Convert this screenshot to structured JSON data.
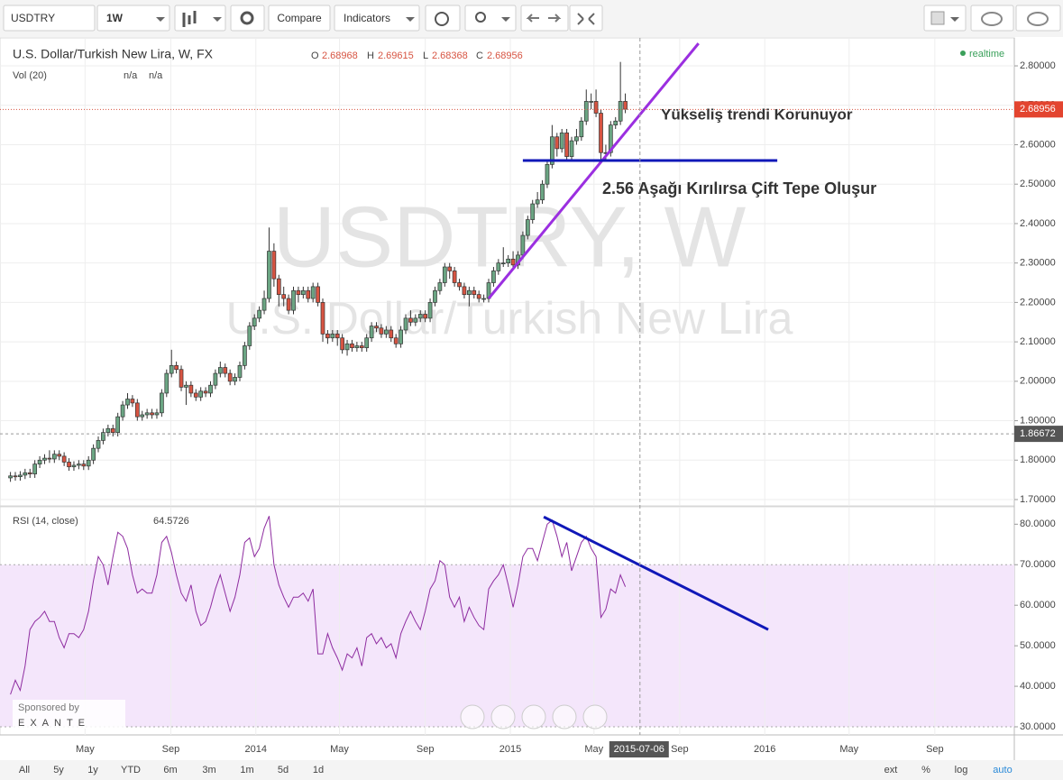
{
  "toolbar": {
    "symbol": "USDTRY",
    "interval": "1W",
    "compare": "Compare",
    "indicators": "Indicators"
  },
  "bottom_bar": {
    "ranges": [
      "All",
      "5y",
      "1y",
      "YTD",
      "6m",
      "3m",
      "1m",
      "5d",
      "1d"
    ],
    "toggles": [
      "ext",
      "%",
      "log",
      "auto"
    ]
  },
  "chart_data": [
    {
      "type": "candlestick",
      "title": "U.S. Dollar/Turkish New Lira, W, FX",
      "ohlc_labels": [
        "O",
        "H",
        "L",
        "C"
      ],
      "ohlc_values": [
        2.68968,
        2.69615,
        2.68368,
        2.68956
      ],
      "volume_title": "Vol (20)",
      "volume_values": [
        "n/a",
        "n/a"
      ],
      "status": "realtime",
      "watermark": [
        "USDTRY, W",
        "U.S. Dollar/Turkish New Lira"
      ],
      "up_color": "#6ba583",
      "down_color": "#d75442",
      "x": [
        "2013-01-14",
        "2013-01-21",
        "2013-01-28",
        "2013-02-04",
        "2013-02-11",
        "2013-02-18",
        "2013-02-25",
        "2013-03-04",
        "2013-03-11",
        "2013-03-18",
        "2013-03-25",
        "2013-04-01",
        "2013-04-08",
        "2013-04-15",
        "2013-04-22",
        "2013-04-29",
        "2013-05-06",
        "2013-05-13",
        "2013-05-20",
        "2013-05-27",
        "2013-06-03",
        "2013-06-10",
        "2013-06-17",
        "2013-06-24",
        "2013-07-01",
        "2013-07-08",
        "2013-07-15",
        "2013-07-22",
        "2013-07-29",
        "2013-08-05",
        "2013-08-12",
        "2013-08-19",
        "2013-08-26",
        "2013-09-02",
        "2013-09-09",
        "2013-09-16",
        "2013-09-23",
        "2013-09-30",
        "2013-10-07",
        "2013-10-14",
        "2013-10-21",
        "2013-10-28",
        "2013-11-04",
        "2013-11-11",
        "2013-11-18",
        "2013-11-25",
        "2013-12-02",
        "2013-12-09",
        "2013-12-16",
        "2013-12-23",
        "2013-12-30",
        "2014-01-06",
        "2014-01-13",
        "2014-01-20",
        "2014-01-27",
        "2014-02-03",
        "2014-02-10",
        "2014-02-17",
        "2014-02-24",
        "2014-03-03",
        "2014-03-10",
        "2014-03-17",
        "2014-03-24",
        "2014-03-31",
        "2014-04-07",
        "2014-04-14",
        "2014-04-21",
        "2014-04-28",
        "2014-05-05",
        "2014-05-12",
        "2014-05-19",
        "2014-05-26",
        "2014-06-02",
        "2014-06-09",
        "2014-06-16",
        "2014-06-23",
        "2014-06-30",
        "2014-07-07",
        "2014-07-14",
        "2014-07-21",
        "2014-07-28",
        "2014-08-04",
        "2014-08-11",
        "2014-08-18",
        "2014-08-25",
        "2014-09-01",
        "2014-09-08",
        "2014-09-15",
        "2014-09-22",
        "2014-09-29",
        "2014-10-06",
        "2014-10-13",
        "2014-10-20",
        "2014-10-27",
        "2014-11-03",
        "2014-11-10",
        "2014-11-17",
        "2014-11-24",
        "2014-12-01",
        "2014-12-08",
        "2014-12-15",
        "2014-12-22",
        "2014-12-29",
        "2015-01-05",
        "2015-01-12",
        "2015-01-19",
        "2015-01-26",
        "2015-02-02",
        "2015-02-09",
        "2015-02-16",
        "2015-02-23",
        "2015-03-02",
        "2015-03-09",
        "2015-03-16",
        "2015-03-23",
        "2015-03-30",
        "2015-04-06",
        "2015-04-13",
        "2015-04-20",
        "2015-04-27",
        "2015-05-04",
        "2015-05-11",
        "2015-05-18",
        "2015-05-25",
        "2015-06-01",
        "2015-06-08",
        "2015-06-15"
      ],
      "open": [
        1.755,
        1.76,
        1.758,
        1.762,
        1.768,
        1.765,
        1.79,
        1.8,
        1.805,
        1.803,
        1.815,
        1.81,
        1.795,
        1.783,
        1.787,
        1.79,
        1.785,
        1.8,
        1.83,
        1.85,
        1.87,
        1.88,
        1.87,
        1.91,
        1.94,
        1.955,
        1.945,
        1.91,
        1.915,
        1.92,
        1.915,
        1.92,
        1.97,
        2.02,
        2.04,
        2.03,
        1.985,
        1.99,
        1.97,
        1.96,
        1.975,
        1.97,
        1.99,
        2.02,
        2.035,
        2.02,
        2.0,
        2.01,
        2.04,
        2.09,
        2.14,
        2.16,
        2.18,
        2.21,
        2.33,
        2.26,
        2.22,
        2.21,
        2.18,
        2.23,
        2.22,
        2.23,
        2.21,
        2.24,
        2.2,
        2.12,
        2.11,
        2.12,
        2.11,
        2.08,
        2.095,
        2.085,
        2.09,
        2.085,
        2.11,
        2.14,
        2.135,
        2.12,
        2.13,
        2.11,
        2.095,
        2.13,
        2.16,
        2.15,
        2.16,
        2.17,
        2.16,
        2.2,
        2.23,
        2.25,
        2.29,
        2.28,
        2.25,
        2.24,
        2.22,
        2.23,
        2.22,
        2.21,
        2.21,
        2.25,
        2.28,
        2.3,
        2.3,
        2.31,
        2.295,
        2.32,
        2.37,
        2.41,
        2.45,
        2.46,
        2.5,
        2.55,
        2.62,
        2.59,
        2.63,
        2.57,
        2.61,
        2.62,
        2.66,
        2.71,
        2.71,
        2.68,
        2.58,
        2.58,
        2.65,
        2.66,
        2.71
      ],
      "high": [
        1.77,
        1.77,
        1.772,
        1.778,
        1.778,
        1.8,
        1.81,
        1.815,
        1.825,
        1.825,
        1.825,
        1.82,
        1.805,
        1.797,
        1.8,
        1.8,
        1.81,
        1.84,
        1.86,
        1.88,
        1.89,
        1.89,
        1.92,
        1.95,
        1.97,
        1.965,
        1.955,
        1.925,
        1.93,
        1.93,
        1.93,
        1.98,
        2.03,
        2.08,
        2.05,
        2.04,
        2.0,
        2.0,
        1.98,
        1.985,
        1.985,
        2.0,
        2.03,
        2.05,
        2.045,
        2.03,
        2.02,
        2.05,
        2.1,
        2.15,
        2.17,
        2.19,
        2.23,
        2.39,
        2.35,
        2.27,
        2.24,
        2.22,
        2.24,
        2.24,
        2.24,
        2.24,
        2.25,
        2.25,
        2.21,
        2.13,
        2.13,
        2.13,
        2.12,
        2.105,
        2.105,
        2.1,
        2.1,
        2.12,
        2.15,
        2.15,
        2.145,
        2.14,
        2.14,
        2.12,
        2.14,
        2.17,
        2.18,
        2.17,
        2.18,
        2.18,
        2.21,
        2.24,
        2.26,
        2.3,
        2.3,
        2.29,
        2.26,
        2.25,
        2.24,
        2.24,
        2.23,
        2.22,
        2.26,
        2.29,
        2.31,
        2.34,
        2.32,
        2.33,
        2.33,
        2.38,
        2.42,
        2.46,
        2.48,
        2.51,
        2.56,
        2.65,
        2.63,
        2.64,
        2.64,
        2.62,
        2.64,
        2.67,
        2.74,
        2.73,
        2.74,
        2.69,
        2.6,
        2.66,
        2.67,
        2.81,
        2.73
      ],
      "low": [
        1.745,
        1.748,
        1.748,
        1.752,
        1.755,
        1.755,
        1.78,
        1.79,
        1.793,
        1.793,
        1.8,
        1.785,
        1.773,
        1.773,
        1.777,
        1.775,
        1.775,
        1.79,
        1.82,
        1.84,
        1.86,
        1.86,
        1.86,
        1.9,
        1.93,
        1.935,
        1.9,
        1.9,
        1.905,
        1.905,
        1.905,
        1.91,
        1.96,
        2.01,
        2.02,
        1.975,
        1.94,
        1.96,
        1.95,
        1.95,
        1.96,
        1.96,
        1.98,
        2.01,
        2.01,
        1.99,
        1.99,
        2.0,
        2.03,
        2.08,
        2.13,
        2.15,
        2.17,
        2.2,
        2.24,
        2.19,
        2.19,
        2.17,
        2.17,
        2.2,
        2.21,
        2.2,
        2.2,
        2.19,
        2.1,
        2.095,
        2.1,
        2.09,
        2.07,
        2.065,
        2.075,
        2.075,
        2.075,
        2.075,
        2.1,
        2.125,
        2.11,
        2.11,
        2.1,
        2.085,
        2.085,
        2.12,
        2.14,
        2.14,
        2.15,
        2.15,
        2.15,
        2.19,
        2.22,
        2.24,
        2.26,
        2.24,
        2.23,
        2.21,
        2.19,
        2.21,
        2.2,
        2.2,
        2.2,
        2.24,
        2.27,
        2.29,
        2.29,
        2.285,
        2.285,
        2.31,
        2.36,
        2.4,
        2.44,
        2.45,
        2.49,
        2.54,
        2.57,
        2.58,
        2.56,
        2.56,
        2.6,
        2.61,
        2.65,
        2.69,
        2.67,
        2.56,
        2.56,
        2.57,
        2.64,
        2.65,
        2.68
      ],
      "close": [
        1.76,
        1.758,
        1.762,
        1.768,
        1.765,
        1.79,
        1.8,
        1.805,
        1.803,
        1.815,
        1.81,
        1.795,
        1.783,
        1.787,
        1.79,
        1.785,
        1.8,
        1.83,
        1.85,
        1.87,
        1.88,
        1.87,
        1.91,
        1.94,
        1.955,
        1.945,
        1.91,
        1.915,
        1.92,
        1.915,
        1.92,
        1.97,
        2.02,
        2.04,
        2.03,
        1.985,
        1.99,
        1.97,
        1.96,
        1.975,
        1.97,
        1.99,
        2.02,
        2.035,
        2.02,
        2.0,
        2.01,
        2.04,
        2.09,
        2.14,
        2.16,
        2.18,
        2.21,
        2.33,
        2.26,
        2.22,
        2.21,
        2.18,
        2.23,
        2.22,
        2.23,
        2.21,
        2.24,
        2.2,
        2.12,
        2.11,
        2.12,
        2.11,
        2.08,
        2.095,
        2.085,
        2.09,
        2.085,
        2.11,
        2.14,
        2.135,
        2.12,
        2.13,
        2.11,
        2.095,
        2.13,
        2.16,
        2.15,
        2.16,
        2.17,
        2.16,
        2.2,
        2.23,
        2.25,
        2.29,
        2.28,
        2.25,
        2.24,
        2.22,
        2.23,
        2.22,
        2.21,
        2.21,
        2.25,
        2.28,
        2.3,
        2.3,
        2.31,
        2.295,
        2.32,
        2.37,
        2.41,
        2.45,
        2.46,
        2.5,
        2.55,
        2.62,
        2.59,
        2.63,
        2.57,
        2.61,
        2.62,
        2.66,
        2.71,
        2.71,
        2.68,
        2.58,
        2.58,
        2.65,
        2.66,
        2.71,
        2.69
      ],
      "xlim": [
        "2012-12-30",
        "2016-12-24"
      ],
      "xticks": [
        {
          "value": "2013-05-01",
          "label": "May"
        },
        {
          "value": "2013-09-01",
          "label": "Sep"
        },
        {
          "value": "2014-01-01",
          "label": "2014"
        },
        {
          "value": "2014-05-01",
          "label": "May"
        },
        {
          "value": "2014-09-01",
          "label": "Sep"
        },
        {
          "value": "2015-01-01",
          "label": "2015"
        },
        {
          "value": "2015-05-01",
          "label": "May"
        },
        {
          "value": "2015-09-01",
          "label": "Sep"
        },
        {
          "value": "2016-01-01",
          "label": "2016"
        },
        {
          "value": "2016-05-01",
          "label": "May"
        },
        {
          "value": "2016-09-01",
          "label": "Sep"
        }
      ],
      "cursor_x": "2015-07-06",
      "ylim": [
        1.684,
        2.871
      ],
      "yticks": [
        {
          "value": 1.7,
          "label": "1.70000"
        },
        {
          "value": 1.8,
          "label": "1.80000"
        },
        {
          "value": 1.9,
          "label": "1.90000"
        },
        {
          "value": 2.0,
          "label": "2.00000"
        },
        {
          "value": 2.1,
          "label": "2.10000"
        },
        {
          "value": 2.2,
          "label": "2.20000"
        },
        {
          "value": 2.3,
          "label": "2.30000"
        },
        {
          "value": 2.4,
          "label": "2.40000"
        },
        {
          "value": 2.5,
          "label": "2.50000"
        },
        {
          "value": 2.6,
          "label": "2.60000"
        },
        {
          "value": 2.7,
          "label": "2.70000"
        },
        {
          "value": 2.8,
          "label": "2.80000"
        }
      ],
      "grid": true,
      "price_marker": 1.86672,
      "trend_lines": [
        {
          "color": "#9b2fe0",
          "x": [
            "2014-12-01",
            "2015-09-28"
          ],
          "y": [
            2.21,
            2.857
          ]
        },
        {
          "color": "#1018b8",
          "x": [
            "2015-01-19",
            "2016-01-19"
          ],
          "y": [
            2.56,
            2.56
          ]
        }
      ],
      "annotations": [
        {
          "text": "Yükseliş trendi Korunuyor",
          "color": "#9b2fe0"
        },
        {
          "text": "2.56 Aşağı Kırılırsa Çift Tepe Oluşur",
          "color": "#1018b8"
        }
      ]
    },
    {
      "type": "line",
      "title": "RSI (14, close)",
      "color": "#8e2ca0",
      "values": [
        38,
        41.5,
        39,
        45,
        54,
        56,
        57,
        58.5,
        56,
        56,
        52,
        49.5,
        53,
        53,
        52,
        54,
        58.5,
        66,
        72,
        70,
        65,
        72,
        78,
        77,
        74,
        67.5,
        63,
        64,
        63,
        63,
        67.5,
        75.5,
        77,
        73,
        67.5,
        63,
        61,
        65,
        58.5,
        55,
        56,
        59.5,
        64,
        67.5,
        63,
        58.5,
        62,
        67.5,
        75.5,
        76.6,
        72,
        74,
        79,
        82,
        70,
        65,
        62,
        59.5,
        62,
        62,
        63,
        61,
        64,
        48,
        48,
        53,
        49.5,
        47,
        44,
        48,
        47,
        49.5,
        45,
        52,
        53,
        50.5,
        52,
        49.5,
        50.5,
        47,
        53,
        56,
        58.5,
        56,
        54,
        58.5,
        64,
        66,
        71,
        70,
        62,
        59.5,
        62,
        56,
        59.5,
        57,
        55,
        54,
        64,
        66,
        67.5,
        70,
        65,
        59.5,
        65,
        72,
        74,
        74,
        71,
        75.5,
        80,
        81,
        77,
        72,
        75.5,
        68.5,
        72,
        75.5,
        77,
        74,
        72,
        57,
        59,
        64,
        63,
        67.5,
        64.5726
      ],
      "ylim": [
        28,
        84.3
      ],
      "yticks": [
        {
          "value": 30,
          "label": "30.0000"
        },
        {
          "value": 40,
          "label": "40.0000"
        },
        {
          "value": 50,
          "label": "50.0000"
        },
        {
          "value": 60,
          "label": "60.0000"
        },
        {
          "value": 70,
          "label": "70.0000"
        },
        {
          "value": 80,
          "label": "80.0000"
        }
      ],
      "band": [
        30,
        70
      ],
      "band_color": "#f4e6fb",
      "trend_lines": [
        {
          "color": "#1018b8",
          "x": [
            "2015-02-18",
            "2016-01-06"
          ],
          "y": [
            81.8,
            54
          ]
        }
      ],
      "sponsor": [
        "Sponsored by",
        "EXANTE"
      ]
    }
  ]
}
